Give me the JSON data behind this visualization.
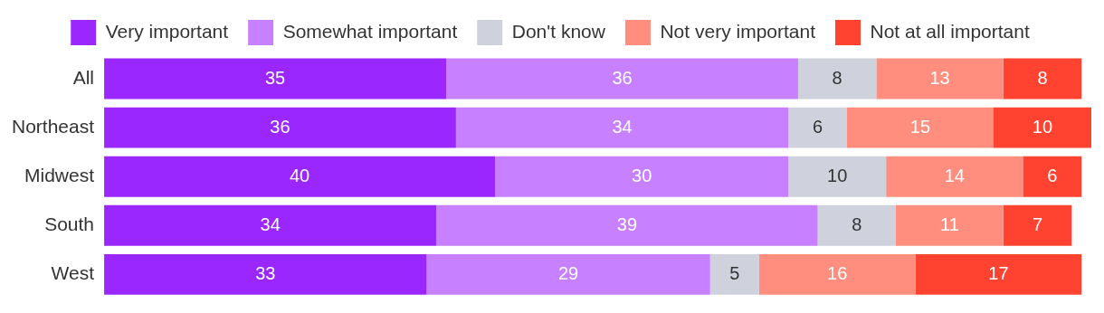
{
  "chart_data": {
    "type": "bar",
    "orientation": "horizontal",
    "stacked": true,
    "data_labels": true,
    "legend": "top",
    "categories": [
      "All",
      "Northeast",
      "Midwest",
      "South",
      "West"
    ],
    "series": [
      {
        "name": "Very important",
        "color": "#9b27ff",
        "values": [
          35,
          36,
          40,
          34,
          33
        ]
      },
      {
        "name": "Somewhat important",
        "color": "#c780ff",
        "values": [
          36,
          34,
          30,
          39,
          29
        ]
      },
      {
        "name": "Don't know",
        "color": "#cfd2dc",
        "values": [
          8,
          6,
          10,
          8,
          5
        ]
      },
      {
        "name": "Not very important",
        "color": "#ff8e7e",
        "values": [
          13,
          15,
          14,
          11,
          16
        ]
      },
      {
        "name": "Not at all important",
        "color": "#ff4330",
        "values": [
          8,
          10,
          6,
          7,
          17
        ]
      }
    ]
  }
}
